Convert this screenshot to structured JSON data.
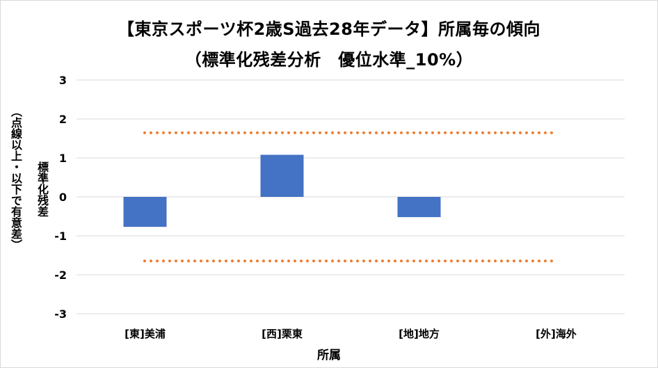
{
  "chart_data": {
    "type": "bar",
    "title": "【東京スポーツ杯2歳S過去28年データ】所属毎の傾向",
    "subtitle": "（標準化残差分析　優位水準_10%）",
    "xlabel": "所属",
    "ylabel": "標準化残差",
    "ylabel_note": "（点線以上・以下で有意差）",
    "categories": [
      "[東]美浦",
      "[西]栗東",
      "[地]地方",
      "[外]海外"
    ],
    "values": [
      -0.77,
      1.08,
      -0.52,
      0
    ],
    "ylim": [
      -3,
      3
    ],
    "yticks": [
      -3,
      -2,
      -1,
      0,
      1,
      2,
      3
    ],
    "threshold_upper": 1.645,
    "threshold_lower": -1.645,
    "grid": true,
    "legend": "none",
    "bar_color": "#4472C4",
    "threshold_color": "#ED7D31",
    "grid_color": "#d9d9d9"
  }
}
